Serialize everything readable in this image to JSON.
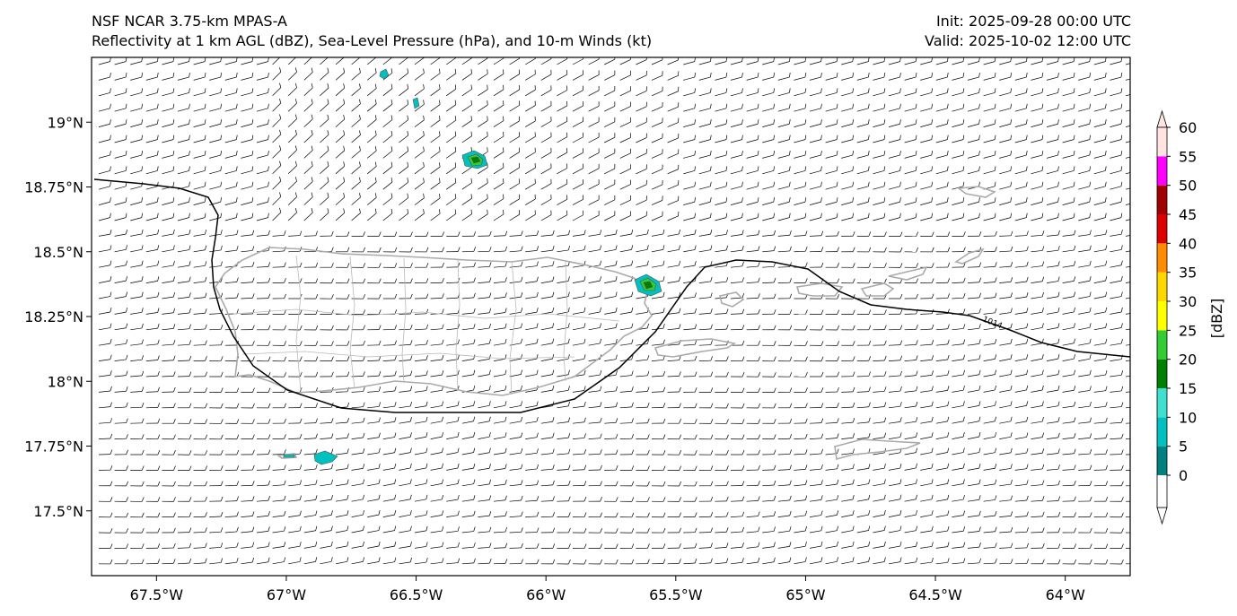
{
  "header": {
    "title_left_line1": "NSF NCAR 3.75-km MPAS-A",
    "title_left_line2": "Reflectivity at 1 km AGL (dBZ), Sea-Level Pressure (hPa), and 10-m Winds (kt)",
    "title_right_line1": "Init: 2025-09-28 00:00 UTC",
    "title_right_line2": "Valid: 2025-10-02 12:00 UTC"
  },
  "map": {
    "lon_range": [
      -67.75,
      -63.75
    ],
    "lat_range": [
      17.25,
      19.25
    ],
    "lon_ticks": [
      {
        "value": -67.5,
        "label": "67.5°W"
      },
      {
        "value": -67.0,
        "label": "67°W"
      },
      {
        "value": -66.5,
        "label": "66.5°W"
      },
      {
        "value": -66.0,
        "label": "66°W"
      },
      {
        "value": -65.5,
        "label": "65.5°W"
      },
      {
        "value": -65.0,
        "label": "65°W"
      },
      {
        "value": -64.5,
        "label": "64.5°W"
      },
      {
        "value": -64.0,
        "label": "64°W"
      }
    ],
    "lat_ticks": [
      {
        "value": 19.0,
        "label": "19°N"
      },
      {
        "value": 18.75,
        "label": "18.75°N"
      },
      {
        "value": 18.5,
        "label": "18.5°N"
      },
      {
        "value": 18.25,
        "label": "18.25°N"
      },
      {
        "value": 18.0,
        "label": "18°N"
      },
      {
        "value": 17.75,
        "label": "17.75°N"
      },
      {
        "value": 17.5,
        "label": "17.5°N"
      }
    ],
    "isobar_label": "1014",
    "isobar_color": "#000000",
    "coastline_color": "#aaaaaa",
    "ocean_color": "#ffffff"
  },
  "colorbar": {
    "label": "[dBZ]",
    "levels": [
      0,
      5,
      10,
      15,
      20,
      25,
      30,
      35,
      40,
      45,
      50,
      55,
      60
    ],
    "tick_labels": [
      "0",
      "5",
      "10",
      "15",
      "20",
      "25",
      "30",
      "35",
      "40",
      "45",
      "50",
      "55",
      "60"
    ],
    "colors": [
      "#008080",
      "#00c0c0",
      "#40e0d0",
      "#008000",
      "#32cd32",
      "#ffff00",
      "#ffd700",
      "#ff8c00",
      "#dd0000",
      "#a00000",
      "#ff00ff",
      "#ffe4e1"
    ],
    "under_color": "#ffffff",
    "over_color": "#ffe4e1"
  }
}
